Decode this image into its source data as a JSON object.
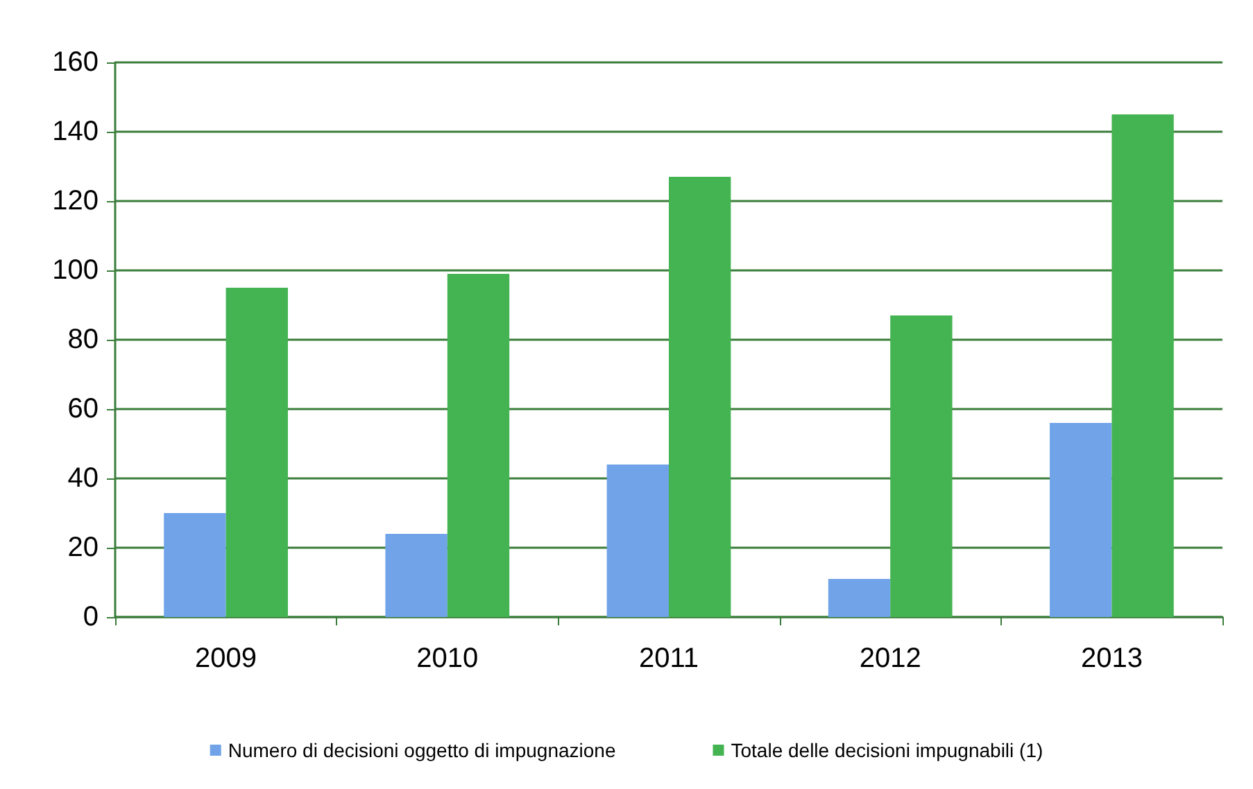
{
  "chart_data": {
    "type": "bar",
    "categories": [
      "2009",
      "2010",
      "2011",
      "2012",
      "2013"
    ],
    "series": [
      {
        "name": "Numero di decisioni oggetto di impugnazione",
        "color": "#70a3e8",
        "values": [
          30,
          24,
          44,
          11,
          56
        ]
      },
      {
        "name": "Totale delle decisioni impugnabili (1)",
        "color": "#44b352",
        "values": [
          95,
          99,
          127,
          87,
          145
        ]
      }
    ],
    "ylim": [
      0,
      160
    ],
    "yticks": [
      0,
      20,
      40,
      60,
      80,
      100,
      120,
      140,
      160
    ],
    "grid": "y",
    "legend": "bottom"
  }
}
